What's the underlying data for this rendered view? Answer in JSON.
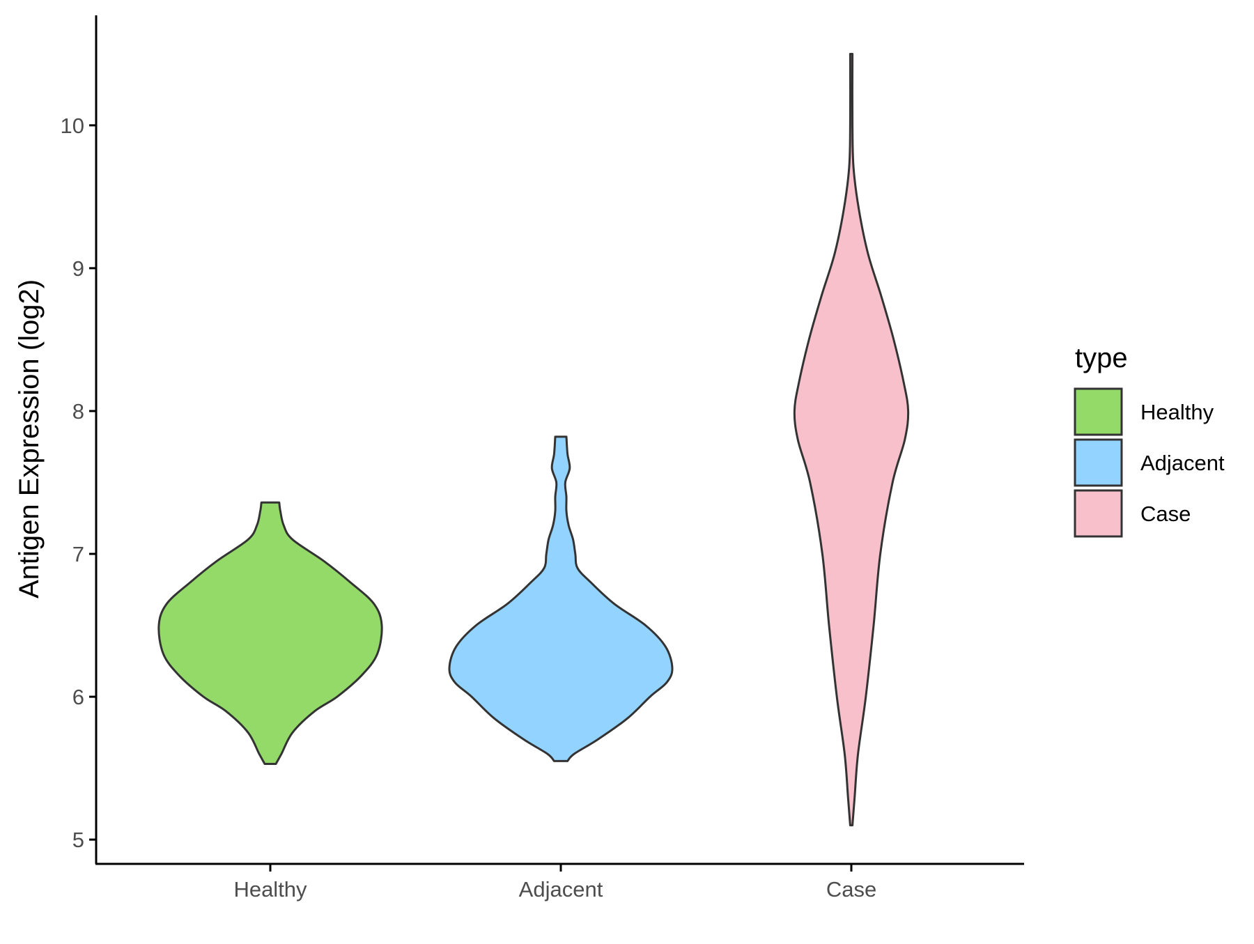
{
  "chart_data": {
    "type": "violin",
    "title": "",
    "xlabel": "",
    "ylabel": "Antigen Expression (log2)",
    "ylim": [
      4.83,
      10.77
    ],
    "yticks": [
      5,
      6,
      7,
      8,
      9,
      10
    ],
    "categories": [
      "Healthy",
      "Adjacent",
      "Case"
    ],
    "grid": false,
    "legend": {
      "title": "type",
      "placement": "right",
      "entries": [
        {
          "label": "Healthy",
          "color": "#93DA69"
        },
        {
          "label": "Adjacent",
          "color": "#92D3FF"
        },
        {
          "label": "Case",
          "color": "#F7C0CB"
        }
      ]
    },
    "outline_color": "#333333",
    "series": [
      {
        "category": "Healthy",
        "color": "#93DA69",
        "min": 5.53,
        "max": 7.36,
        "profile": [
          [
            5.53,
            0.05
          ],
          [
            5.6,
            0.1
          ],
          [
            5.75,
            0.2
          ],
          [
            5.9,
            0.4
          ],
          [
            6.0,
            0.6
          ],
          [
            6.15,
            0.82
          ],
          [
            6.3,
            0.96
          ],
          [
            6.5,
            1.0
          ],
          [
            6.65,
            0.93
          ],
          [
            6.8,
            0.72
          ],
          [
            6.95,
            0.48
          ],
          [
            7.1,
            0.2
          ],
          [
            7.2,
            0.12
          ],
          [
            7.3,
            0.09
          ],
          [
            7.36,
            0.08
          ]
        ]
      },
      {
        "category": "Adjacent",
        "color": "#92D3FF",
        "min": 5.55,
        "max": 7.82,
        "profile": [
          [
            5.55,
            0.06
          ],
          [
            5.6,
            0.12
          ],
          [
            5.7,
            0.33
          ],
          [
            5.85,
            0.6
          ],
          [
            6.0,
            0.8
          ],
          [
            6.1,
            0.95
          ],
          [
            6.2,
            1.0
          ],
          [
            6.35,
            0.94
          ],
          [
            6.5,
            0.76
          ],
          [
            6.65,
            0.48
          ],
          [
            6.8,
            0.27
          ],
          [
            6.9,
            0.15
          ],
          [
            7.0,
            0.13
          ],
          [
            7.1,
            0.11
          ],
          [
            7.2,
            0.07
          ],
          [
            7.3,
            0.05
          ],
          [
            7.4,
            0.05
          ],
          [
            7.5,
            0.04
          ],
          [
            7.6,
            0.08
          ],
          [
            7.7,
            0.06
          ],
          [
            7.82,
            0.05
          ]
        ]
      },
      {
        "category": "Case",
        "color": "#F7C0CB",
        "min": 5.1,
        "max": 10.5,
        "profile": [
          [
            5.1,
            0.01
          ],
          [
            5.3,
            0.03
          ],
          [
            5.6,
            0.06
          ],
          [
            6.0,
            0.13
          ],
          [
            6.5,
            0.2
          ],
          [
            7.0,
            0.26
          ],
          [
            7.5,
            0.37
          ],
          [
            7.8,
            0.48
          ],
          [
            8.0,
            0.51
          ],
          [
            8.2,
            0.47
          ],
          [
            8.5,
            0.38
          ],
          [
            8.8,
            0.27
          ],
          [
            9.1,
            0.15
          ],
          [
            9.4,
            0.07
          ],
          [
            9.7,
            0.02
          ],
          [
            10.0,
            0.01
          ],
          [
            10.5,
            0.01
          ]
        ]
      }
    ]
  }
}
